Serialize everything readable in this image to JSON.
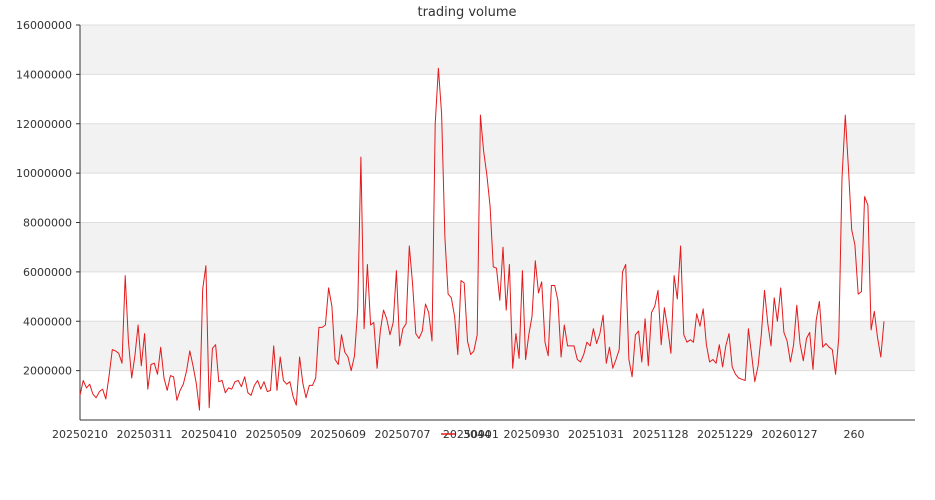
{
  "chart_data": {
    "type": "line",
    "title": "trading volume",
    "xlabel": "",
    "ylabel": "",
    "ylim": [
      0,
      16000000
    ],
    "yticks": [
      "2000000",
      "4000000",
      "6000000",
      "8000000",
      "10000000",
      "12000000",
      "14000000",
      "16000000"
    ],
    "xtick_labels": [
      "20250210",
      "20250311",
      "20250410",
      "20250509",
      "20250609",
      "20250707",
      "20250901",
      "20250930",
      "20251031",
      "20251128",
      "20251229",
      "20260127",
      "260"
    ],
    "grid": "horizontal-bands",
    "legend_position": "bottom-center",
    "series": [
      {
        "name": "3044",
        "color": "#e41a1c",
        "values": [
          1000000,
          1600000,
          1300000,
          1450000,
          1050000,
          900000,
          1150000,
          1250000,
          850000,
          1800000,
          2850000,
          2800000,
          2700000,
          2300000,
          5850000,
          3200000,
          1700000,
          2600000,
          3850000,
          2200000,
          3500000,
          1250000,
          2250000,
          2300000,
          1850000,
          2950000,
          1700000,
          1200000,
          1800000,
          1750000,
          800000,
          1200000,
          1450000,
          2000000,
          2800000,
          2200000,
          1500000,
          400000,
          5300000,
          6250000,
          500000,
          2900000,
          3050000,
          1550000,
          1600000,
          1100000,
          1300000,
          1250000,
          1550000,
          1600000,
          1350000,
          1750000,
          1100000,
          1000000,
          1400000,
          1600000,
          1250000,
          1550000,
          1150000,
          1200000,
          3000000,
          1200000,
          2550000,
          1600000,
          1450000,
          1550000,
          950000,
          600000,
          2550000,
          1500000,
          900000,
          1400000,
          1400000,
          1700000,
          3750000,
          3750000,
          3850000,
          5350000,
          4600000,
          2450000,
          2250000,
          3450000,
          2750000,
          2550000,
          2000000,
          2600000,
          4500000,
          10650000,
          3700000,
          6300000,
          3850000,
          3950000,
          2100000,
          3600000,
          4450000,
          4100000,
          3450000,
          3950000,
          6050000,
          3000000,
          3700000,
          3900000,
          7050000,
          5500000,
          3500000,
          3300000,
          3600000,
          4700000,
          4350000,
          3200000,
          12000000,
          14250000,
          12400000,
          7400000,
          5100000,
          4950000,
          4200000,
          2650000,
          5650000,
          5550000,
          3200000,
          2650000,
          2800000,
          3450000,
          12350000,
          10900000,
          9950000,
          8650000,
          6200000,
          6150000,
          4850000,
          7000000,
          4450000,
          6300000,
          2100000,
          3500000,
          2500000,
          6050000,
          2450000,
          3450000,
          4200000,
          6450000,
          5150000,
          5600000,
          3150000,
          2600000,
          5450000,
          5450000,
          4850000,
          2550000,
          3850000,
          3000000,
          3000000,
          3000000,
          2450000,
          2350000,
          2650000,
          3150000,
          3000000,
          3700000,
          3100000,
          3500000,
          4250000,
          2300000,
          2950000,
          2100000,
          2450000,
          2850000,
          6000000,
          6300000,
          2450000,
          1750000,
          3450000,
          3600000,
          2350000,
          4100000,
          2200000,
          4350000,
          4600000,
          5250000,
          3050000,
          4550000,
          3700000,
          2700000,
          5850000,
          4900000,
          7050000,
          3450000,
          3150000,
          3250000,
          3150000,
          4300000,
          3800000,
          4500000,
          3050000,
          2350000,
          2450000,
          2300000,
          3050000,
          2150000,
          3000000,
          3500000,
          2150000,
          1850000,
          1700000,
          1650000,
          1600000,
          3700000,
          2650000,
          1550000,
          2200000,
          3450000,
          5250000,
          3900000,
          3000000,
          4950000,
          4000000,
          5350000,
          3550000,
          3200000,
          2350000,
          3050000,
          4650000,
          3100000,
          2400000,
          3300000,
          3550000,
          2050000,
          4050000,
          4800000,
          2950000,
          3100000,
          2950000,
          2850000,
          1850000,
          3350000,
          9800000,
          12350000,
          10150000,
          7700000,
          7100000,
          5100000,
          5200000,
          9050000,
          8700000,
          3650000,
          4400000,
          3350000,
          2550000,
          4000000
        ]
      }
    ]
  }
}
